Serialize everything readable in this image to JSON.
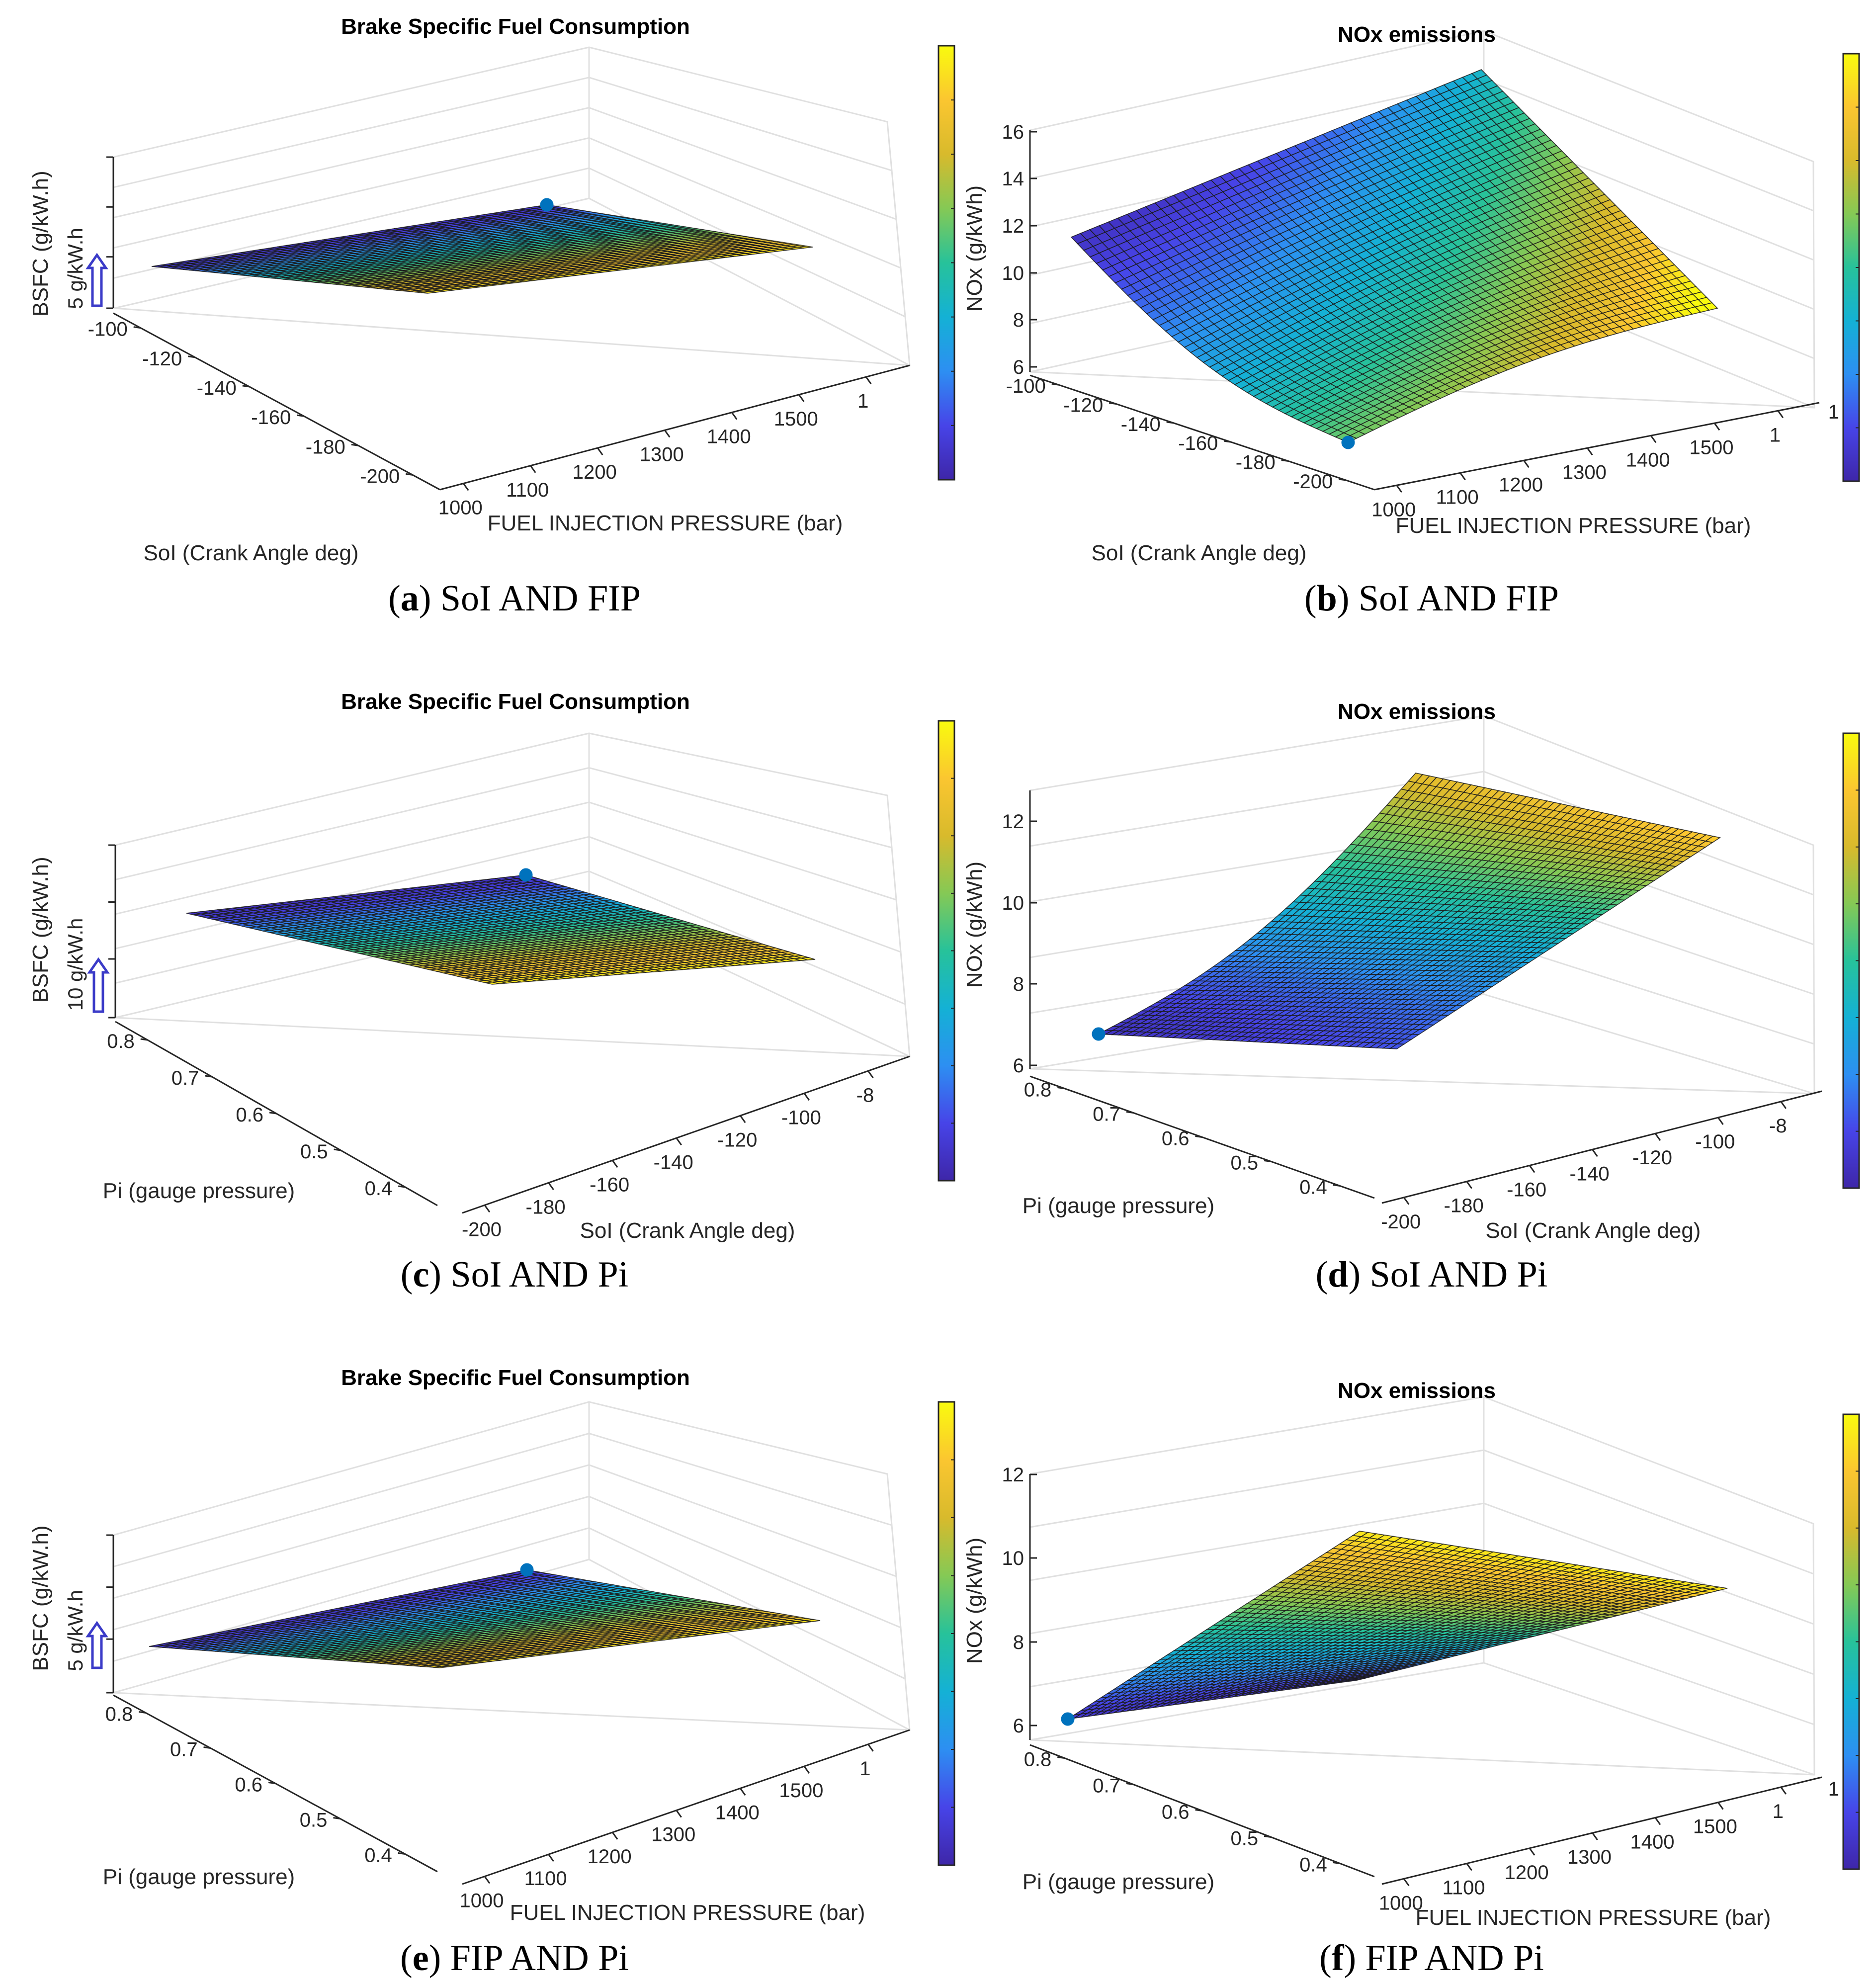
{
  "colors": {
    "parula": [
      "#3e26a8",
      "#4744e8",
      "#2d8ff2",
      "#14b1d5",
      "#27c29a",
      "#85c955",
      "#d8ba2c",
      "#fbc630",
      "#f9fb0e"
    ],
    "axis": "#262626",
    "grid": "#e0e0e0",
    "marker": "#0072bd",
    "arrow": "#3b3bc8"
  },
  "chart_data": [
    {
      "id": "a",
      "type": "surface",
      "title": "Brake Specific Fuel Consumption",
      "xlabel": "SoI (Crank Angle deg)",
      "ylabel": "FUEL INJECTION PRESSURE (bar)",
      "zlabel": "BSFC (g/kW.h)",
      "scale_note": "5 g/kW.h",
      "x_ticks": [
        "-100",
        "-120",
        "-140",
        "-160",
        "-180",
        "-200"
      ],
      "y_ticks": [
        "1000",
        "1100",
        "1200",
        "1300",
        "1400",
        "1500",
        "1"
      ],
      "z_ticks": [],
      "colorbar_ticks": [],
      "caption_letter": "a",
      "caption_text": "SoI AND FIP"
    },
    {
      "id": "b",
      "type": "surface",
      "title": "NOx emissions",
      "xlabel": "SoI (Crank Angle deg)",
      "ylabel": "FUEL INJECTION PRESSURE (bar)",
      "zlabel": "NOx (g/kWh)",
      "scale_note": "",
      "x_ticks": [
        "-100",
        "-120",
        "-140",
        "-160",
        "-180",
        "-200"
      ],
      "y_ticks": [
        "1000",
        "1100",
        "1200",
        "1300",
        "1400",
        "1500",
        "1"
      ],
      "z_ticks": [
        "6",
        "8",
        "10",
        "12",
        "14",
        "16"
      ],
      "colorbar_ticks": [
        "1"
      ],
      "caption_letter": "b",
      "caption_text": "SoI AND FIP"
    },
    {
      "id": "c",
      "type": "surface",
      "title": "Brake Specific Fuel Consumption",
      "xlabel": "Pi (gauge pressure)",
      "ylabel": "SoI (Crank Angle deg)",
      "zlabel": "BSFC (g/kW.h)",
      "scale_note": "10 g/kW.h",
      "x_ticks": [
        "0.8",
        "0.7",
        "0.6",
        "0.5",
        "0.4"
      ],
      "y_ticks": [
        "-200",
        "-180",
        "-160",
        "-140",
        "-120",
        "-100",
        "-8"
      ],
      "z_ticks": [],
      "colorbar_ticks": [],
      "caption_letter": "c",
      "caption_text": "SoI AND Pi"
    },
    {
      "id": "d",
      "type": "surface",
      "title": "NOx emissions",
      "xlabel": "Pi (gauge pressure)",
      "ylabel": "SoI (Crank Angle deg)",
      "zlabel": "NOx (g/kWh)",
      "scale_note": "",
      "x_ticks": [
        "0.8",
        "0.7",
        "0.6",
        "0.5",
        "0.4"
      ],
      "y_ticks": [
        "-200",
        "-180",
        "-160",
        "-140",
        "-120",
        "-100",
        "-8"
      ],
      "z_ticks": [
        "6",
        "8",
        "10",
        "12"
      ],
      "colorbar_ticks": [],
      "caption_letter": "d",
      "caption_text": "SoI AND Pi"
    },
    {
      "id": "e",
      "type": "surface",
      "title": "Brake Specific Fuel Consumption",
      "xlabel": "Pi (gauge pressure)",
      "ylabel": "FUEL INJECTION PRESSURE (bar)",
      "zlabel": "BSFC (g/kW.h)",
      "scale_note": "5 g/kW.h",
      "x_ticks": [
        "0.8",
        "0.7",
        "0.6",
        "0.5",
        "0.4"
      ],
      "y_ticks": [
        "1000",
        "1100",
        "1200",
        "1300",
        "1400",
        "1500",
        "1"
      ],
      "z_ticks": [],
      "colorbar_ticks": [],
      "caption_letter": "e",
      "caption_text": "FIP AND Pi"
    },
    {
      "id": "f",
      "type": "surface",
      "title": "NOx emissions",
      "xlabel": "Pi (gauge pressure)",
      "ylabel": "FUEL INJECTION PRESSURE (bar)",
      "zlabel": "NOx (g/kWh)",
      "scale_note": "",
      "x_ticks": [
        "0.8",
        "0.7",
        "0.6",
        "0.5",
        "0.4"
      ],
      "y_ticks": [
        "1000",
        "1100",
        "1200",
        "1300",
        "1400",
        "1500",
        "1"
      ],
      "z_ticks": [
        "6",
        "8",
        "10",
        "12"
      ],
      "colorbar_ticks": [
        "1"
      ],
      "caption_letter": "f",
      "caption_text": "FIP AND Pi"
    }
  ]
}
